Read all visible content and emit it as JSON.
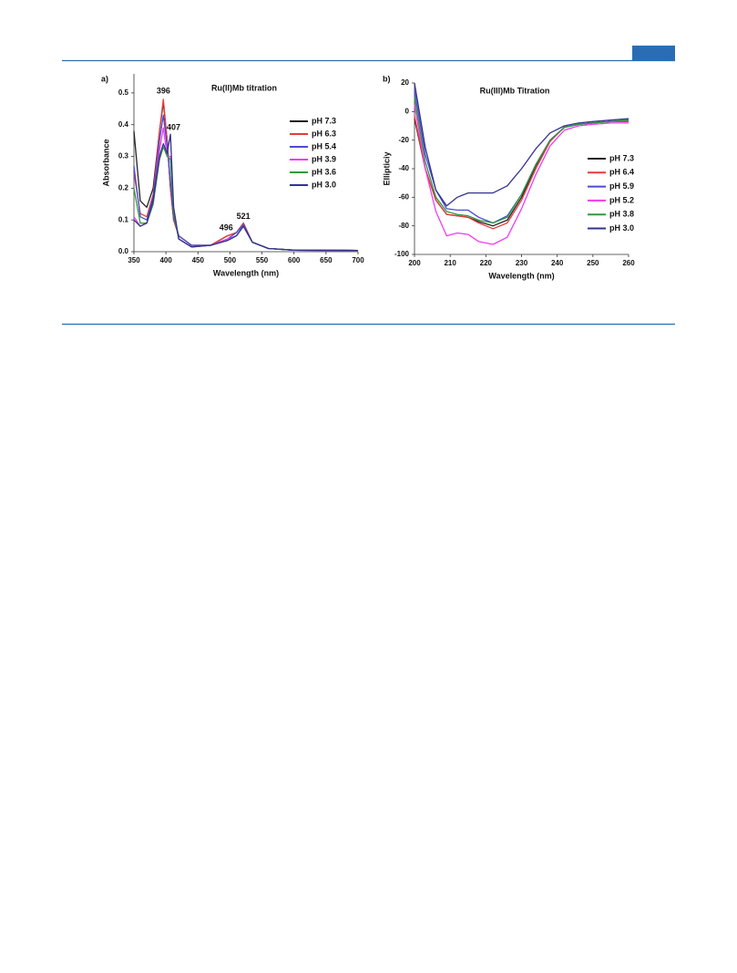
{
  "chart_data": [
    {
      "type": "line",
      "panel": "a)",
      "title": "Ru(II)Mb titration",
      "xlabel": "Wavelength (nm)",
      "ylabel": "Absorbance",
      "annotations": [
        "396",
        "407",
        "496",
        "521"
      ],
      "x": [
        350,
        360,
        370,
        380,
        390,
        396,
        402,
        407,
        412,
        420,
        440,
        470,
        496,
        510,
        521,
        535,
        560,
        600,
        700
      ],
      "series": [
        {
          "name": "pH 7.3",
          "color": "#222222",
          "values": [
            0.38,
            0.16,
            0.14,
            0.2,
            0.38,
            0.47,
            0.35,
            0.2,
            0.1,
            0.05,
            0.02,
            0.02,
            0.05,
            0.06,
            0.09,
            0.03,
            0.01,
            0.005,
            0.004
          ]
        },
        {
          "name": "pH 6.3",
          "color": "#e83a3a",
          "values": [
            0.25,
            0.12,
            0.11,
            0.18,
            0.38,
            0.48,
            0.35,
            0.2,
            0.1,
            0.05,
            0.02,
            0.02,
            0.05,
            0.06,
            0.09,
            0.03,
            0.01,
            0.005,
            0.004
          ]
        },
        {
          "name": "pH 5.4",
          "color": "#4a4ad8",
          "values": [
            0.27,
            0.11,
            0.1,
            0.17,
            0.35,
            0.43,
            0.33,
            0.22,
            0.11,
            0.05,
            0.02,
            0.02,
            0.04,
            0.06,
            0.085,
            0.03,
            0.01,
            0.005,
            0.004
          ]
        },
        {
          "name": "pH 3.9",
          "color": "#f03cf0",
          "values": [
            0.11,
            0.08,
            0.09,
            0.15,
            0.32,
            0.39,
            0.3,
            0.3,
            0.13,
            0.04,
            0.015,
            0.02,
            0.04,
            0.05,
            0.08,
            0.03,
            0.01,
            0.005,
            0.004
          ]
        },
        {
          "name": "pH 3.6",
          "color": "#2f9a3c",
          "values": [
            0.2,
            0.09,
            0.09,
            0.15,
            0.29,
            0.33,
            0.3,
            0.29,
            0.12,
            0.04,
            0.015,
            0.02,
            0.035,
            0.05,
            0.08,
            0.03,
            0.01,
            0.005,
            0.004
          ]
        },
        {
          "name": "pH 3.0",
          "color": "#33338f",
          "values": [
            0.1,
            0.08,
            0.09,
            0.16,
            0.3,
            0.34,
            0.31,
            0.37,
            0.14,
            0.04,
            0.015,
            0.02,
            0.035,
            0.05,
            0.08,
            0.03,
            0.01,
            0.005,
            0.004
          ]
        }
      ],
      "xlim": [
        350,
        700
      ],
      "xticks": [
        350,
        400,
        450,
        500,
        550,
        600,
        650,
        700
      ],
      "ylim": [
        0,
        0.56
      ],
      "yticks": [
        {
          "value": 0,
          "label": "0.0"
        },
        0.1,
        0.2,
        0.3,
        0.4,
        0.5
      ]
    },
    {
      "type": "line",
      "panel": "b)",
      "title": "Ru(III)Mb Titration",
      "xlabel": "Wavelength (nm)",
      "ylabel": "Ellipticiy",
      "x": [
        200,
        203,
        206,
        209,
        212,
        215,
        218,
        222,
        226,
        230,
        234,
        238,
        242,
        246,
        250,
        255,
        260
      ],
      "series": [
        {
          "name": "pH 7.3",
          "color": "#222222",
          "values": [
            -5,
            -40,
            -62,
            -72,
            -73,
            -74,
            -77,
            -80,
            -76,
            -60,
            -38,
            -20,
            -11,
            -9,
            -8,
            -7,
            -7
          ]
        },
        {
          "name": "pH 6.4",
          "color": "#e83a3a",
          "values": [
            -3,
            -40,
            -62,
            -72,
            -73,
            -74,
            -78,
            -82,
            -78,
            -62,
            -40,
            -21,
            -11,
            -9,
            -8,
            -7,
            -7
          ]
        },
        {
          "name": "pH 5.9",
          "color": "#4a4ad8",
          "values": [
            15,
            -30,
            -55,
            -68,
            -69,
            -69,
            -74,
            -78,
            -73,
            -58,
            -37,
            -20,
            -11,
            -9,
            -8,
            -7,
            -6
          ]
        },
        {
          "name": "pH 5.2",
          "color": "#f03cf0",
          "values": [
            5,
            -40,
            -70,
            -87,
            -85,
            -86,
            -91,
            -93,
            -88,
            -68,
            -44,
            -24,
            -13,
            -10,
            -9,
            -8,
            -8
          ]
        },
        {
          "name": "pH 3.8",
          "color": "#2f9a3c",
          "values": [
            10,
            -35,
            -60,
            -70,
            -72,
            -73,
            -76,
            -78,
            -74,
            -58,
            -37,
            -20,
            -11,
            -9,
            -8,
            -7,
            -6
          ]
        },
        {
          "name": "pH 3.0",
          "color": "#33338f",
          "values": [
            20,
            -25,
            -55,
            -66,
            -60,
            -57,
            -57,
            -57,
            -52,
            -40,
            -26,
            -15,
            -10,
            -8,
            -7,
            -6,
            -5
          ]
        }
      ],
      "xlim": [
        200,
        260
      ],
      "xticks": [
        200,
        210,
        220,
        230,
        240,
        250,
        260
      ],
      "ylim": [
        -100,
        20
      ],
      "yticks": [
        -100,
        -80,
        -60,
        -40,
        -20,
        0,
        20
      ]
    }
  ]
}
